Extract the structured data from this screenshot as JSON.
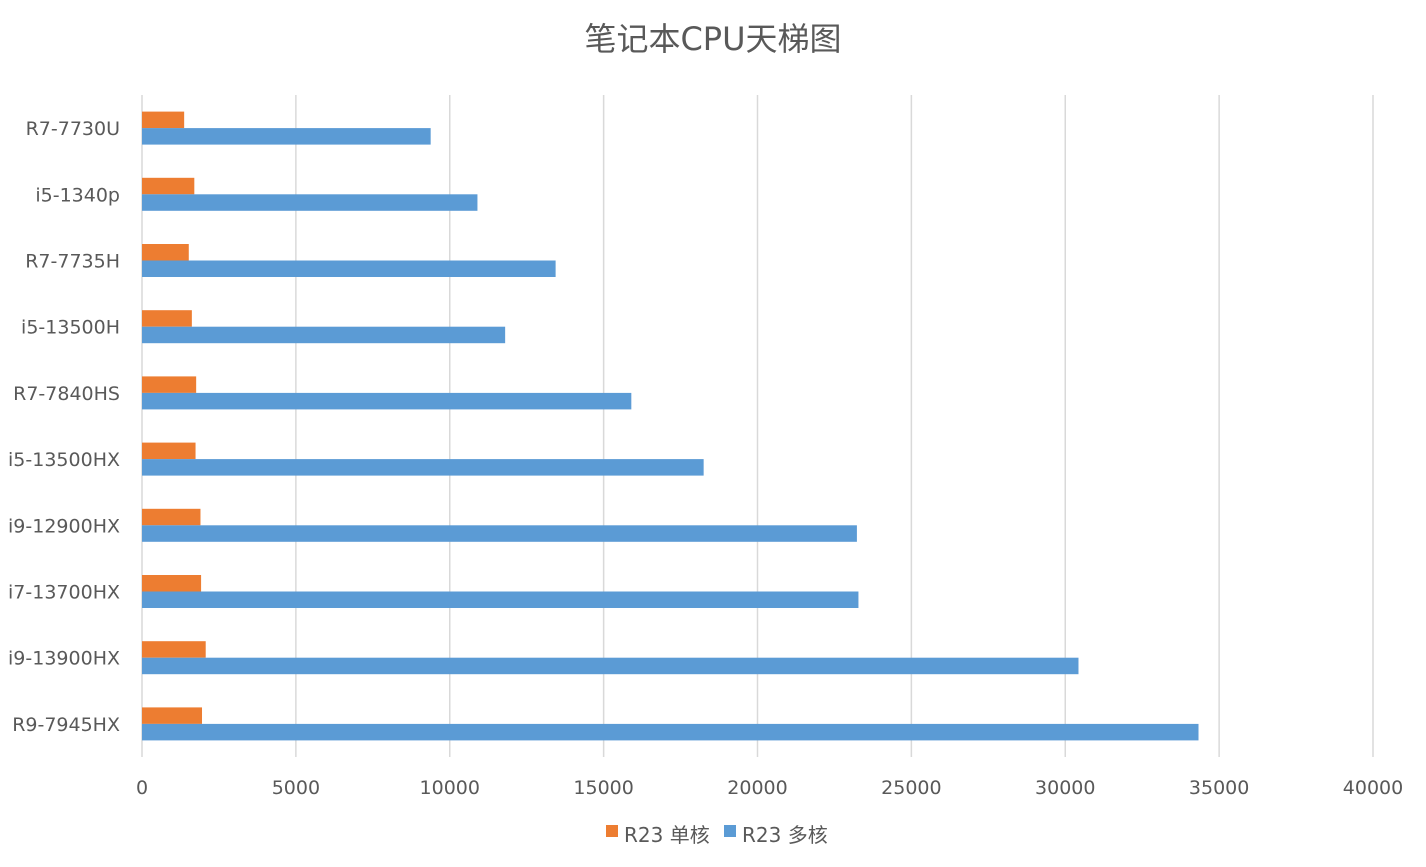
{
  "chart_data": {
    "type": "bar",
    "orientation": "horizontal",
    "title": "笔记本CPU天梯图",
    "xlabel": "",
    "ylabel": "",
    "xlim": [
      0,
      40000
    ],
    "x_ticks": [
      0,
      5000,
      10000,
      15000,
      20000,
      25000,
      30000,
      35000,
      40000
    ],
    "grid": "vertical",
    "legend_position": "bottom",
    "categories": [
      "R7-7730U",
      "i5-1340p",
      "R7-7735H",
      "i5-13500H",
      "R7-7840HS",
      "i5-13500HX",
      "i9-12900HX",
      "i7-13700HX",
      "i9-13900HX",
      "R9-7945HX"
    ],
    "series": [
      {
        "name": "R23 单核",
        "color": "#ed7d31",
        "values": [
          1370,
          1700,
          1520,
          1620,
          1760,
          1740,
          1900,
          1920,
          2070,
          1950
        ]
      },
      {
        "name": "R23 多核",
        "color": "#5b9bd5",
        "values": [
          9380,
          10900,
          13440,
          11800,
          15900,
          18250,
          23230,
          23280,
          30430,
          34330
        ]
      }
    ]
  }
}
